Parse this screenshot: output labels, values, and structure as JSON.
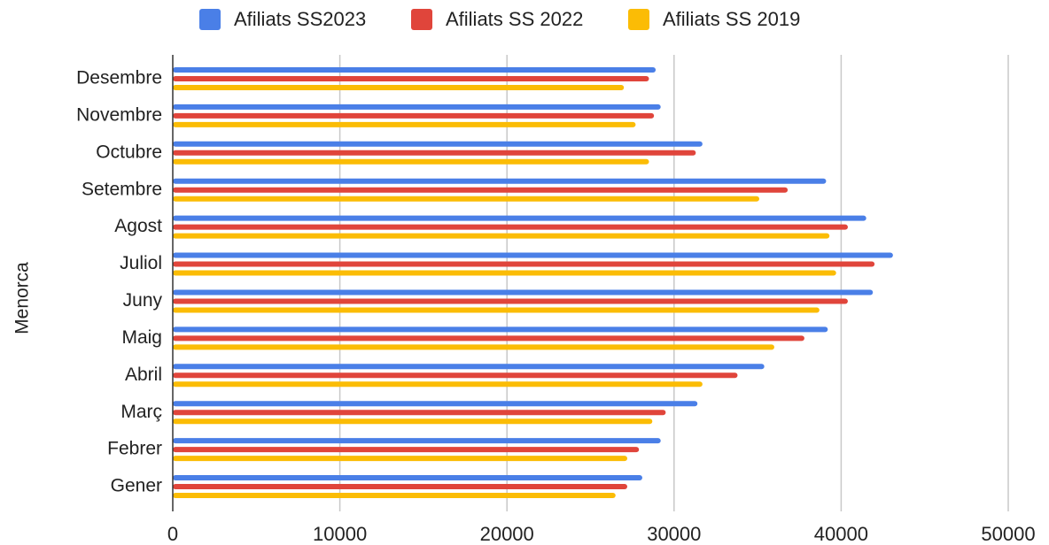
{
  "chart_data": {
    "type": "bar",
    "orientation": "horizontal",
    "ylabel": "Menorca",
    "xlabel": "",
    "xlim": [
      0,
      50000
    ],
    "x_ticks": [
      0,
      10000,
      20000,
      30000,
      40000,
      50000
    ],
    "grid": "vertical",
    "legend_position": "top",
    "categories": [
      "Gener",
      "Febrer",
      "Març",
      "Abril",
      "Maig",
      "Juny",
      "Juliol",
      "Agost",
      "Setembre",
      "Octubre",
      "Novembre",
      "Desembre"
    ],
    "series": [
      {
        "name": "Afiliats SS2023",
        "color": "#4a7fe7",
        "values": [
          28100,
          29200,
          31400,
          35400,
          39200,
          41900,
          43100,
          41500,
          39100,
          31700,
          29200,
          28900
        ]
      },
      {
        "name": "Afiliats SS 2022",
        "color": "#e0453b",
        "values": [
          27200,
          27900,
          29500,
          33800,
          37800,
          40400,
          42000,
          40400,
          36800,
          31300,
          28800,
          28500
        ]
      },
      {
        "name": "Afiliats SS 2019",
        "color": "#fbbc05",
        "values": [
          26500,
          27200,
          28700,
          31700,
          36000,
          38700,
          39700,
          39300,
          35100,
          28500,
          27700,
          27000
        ]
      }
    ]
  }
}
